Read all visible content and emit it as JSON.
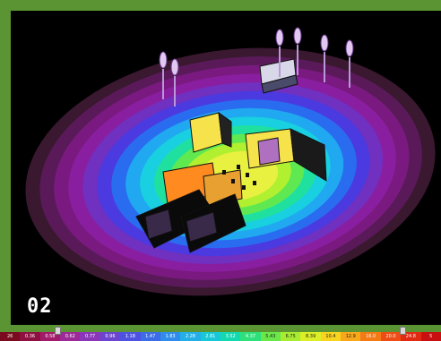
{
  "panel": {
    "number": "02"
  },
  "legend": {
    "cells": [
      {
        "label": "26",
        "color": "#7a0a1e"
      },
      {
        "label": "0.36",
        "color": "#8e1040"
      },
      {
        "label": "0.58",
        "color": "#a21a6a"
      },
      {
        "label": "0.62",
        "color": "#9b2a96"
      },
      {
        "label": "0.77",
        "color": "#8a36b8"
      },
      {
        "label": "0.96",
        "color": "#6b44d0"
      },
      {
        "label": "1.18",
        "color": "#4e52e0"
      },
      {
        "label": "1.47",
        "color": "#3c6ce8"
      },
      {
        "label": "1.83",
        "color": "#2f8cea"
      },
      {
        "label": "2.28",
        "color": "#23aee6"
      },
      {
        "label": "2.81",
        "color": "#18c8d6"
      },
      {
        "label": "3.52",
        "color": "#14d8b0"
      },
      {
        "label": "4.37",
        "color": "#2ee07a"
      },
      {
        "label": "5.43",
        "color": "#6ae84a"
      },
      {
        "label": "6.75",
        "color": "#a8ec32"
      },
      {
        "label": "8.39",
        "color": "#dcee28"
      },
      {
        "label": "10.4",
        "color": "#f6d420"
      },
      {
        "label": "12.9",
        "color": "#f8a81a"
      },
      {
        "label": "16.0",
        "color": "#f47a16"
      },
      {
        "label": "20.0",
        "color": "#ee4c14"
      },
      {
        "label": "24.8",
        "color": "#e02a12"
      },
      {
        "label": "5",
        "color": "#c81010"
      }
    ],
    "slider_min_icon": "slider-handle",
    "slider_max_icon": "slider-handle"
  },
  "scene": {
    "contour_colors": [
      "#3a1830",
      "#5a1a5a",
      "#7a1a80",
      "#8a1ea0",
      "#7030c0",
      "#4a3ae0",
      "#2a6cf0",
      "#20a8f0",
      "#18d0e0",
      "#20e0a0",
      "#60e850",
      "#b0f030",
      "#e8f040"
    ],
    "building_colors": [
      "#f6e24a",
      "#e8a030",
      "#ff8a20",
      "#8060c0"
    ]
  }
}
